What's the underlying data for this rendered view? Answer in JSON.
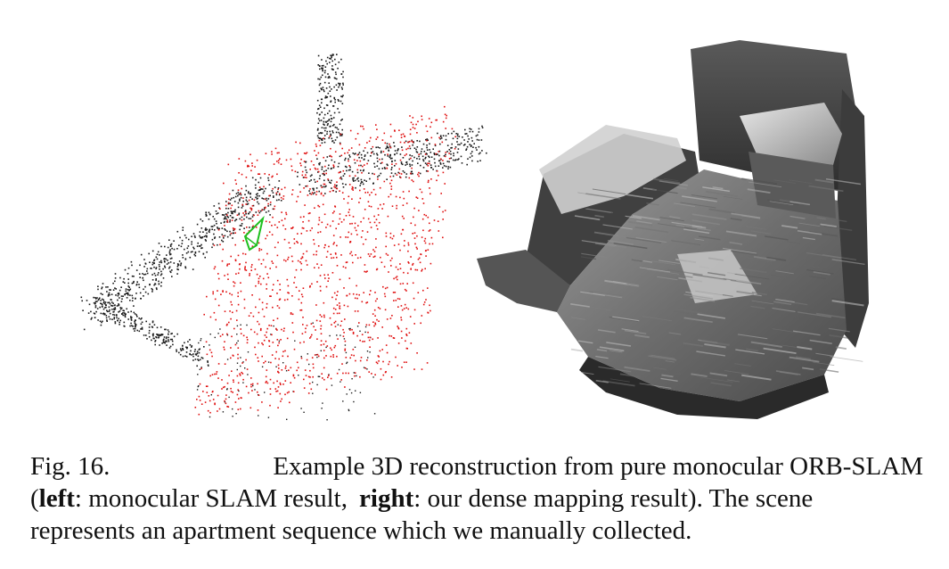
{
  "caption": {
    "label": "Fig. 16.",
    "text_line1": "Example 3D reconstruction from pure monocular ORB-SLAM",
    "open_paren": "(",
    "left_word": "left",
    "left_desc": ": monocular SLAM result,",
    "right_word": "right",
    "right_desc": ": our dense mapping result). The scene",
    "text_line3": "represents an apartment sequence which we manually collected."
  },
  "colors": {
    "map_points_black": "#1a1a1a",
    "map_points_red": "#e01010",
    "camera_frustum": "#20c020",
    "mesh_dark": "#3a3a3a",
    "mesh_light": "#d8d8d8"
  },
  "figure": {
    "left_panel": "sparse-point-cloud",
    "right_panel": "dense-mesh-reconstruction"
  }
}
